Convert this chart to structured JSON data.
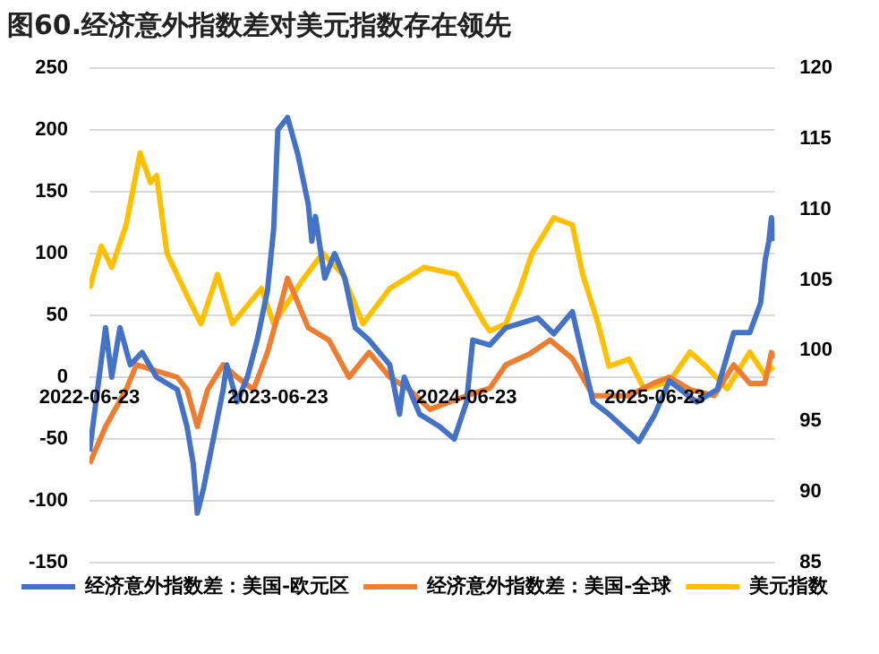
{
  "chart_data": {
    "type": "line",
    "title": "图60.经济意外指数差对美元指数存在领先",
    "xlim": [
      "2022-06-23",
      "2026-02-10"
    ],
    "xticks": [
      "2022-06-23",
      "2023-06-23",
      "2024-06-23",
      "2025-06-23"
    ],
    "ylim": [
      -150,
      250
    ],
    "yticks": [
      -150,
      -100,
      -50,
      0,
      50,
      100,
      150,
      200,
      250
    ],
    "y2lim": [
      85,
      120
    ],
    "y2ticks": [
      85,
      90,
      95,
      100,
      105,
      110,
      115,
      120
    ],
    "grid": "y",
    "legend": "bottom",
    "marker": "none",
    "line_style": "solid",
    "series": [
      {
        "name": "经济意外指数差：美国-欧元区",
        "color": "#4472c4",
        "x": [
          "2022-06-23",
          "2022-07-24",
          "2022-08-05",
          "2022-08-21",
          "2022-09-10",
          "2022-10-03",
          "2022-10-31",
          "2022-12-10",
          "2022-12-29",
          "2023-01-10",
          "2023-01-18",
          "2023-01-30",
          "2023-02-18",
          "2023-03-09",
          "2023-03-16",
          "2023-04-05",
          "2023-04-25",
          "2023-05-14",
          "2023-06-03",
          "2023-06-15",
          "2023-06-23",
          "2023-07-12",
          "2023-08-01",
          "2023-08-21",
          "2023-08-28",
          "2023-09-04",
          "2023-09-22",
          "2023-10-11",
          "2023-10-31",
          "2023-11-20",
          "2023-12-17",
          "2024-01-06",
          "2024-01-26",
          "2024-02-14",
          "2024-02-23",
          "2024-03-24",
          "2024-05-02",
          "2024-05-30",
          "2024-06-23",
          "2024-07-05",
          "2024-08-07",
          "2024-09-07",
          "2024-11-08",
          "2024-12-09",
          "2025-01-14",
          "2025-02-23",
          "2025-03-26",
          "2025-05-23",
          "2025-06-23",
          "2025-07-21",
          "2025-09-12",
          "2025-10-22",
          "2025-11-23",
          "2025-12-24",
          "2026-01-14",
          "2026-01-23",
          "2026-01-30",
          "2026-02-04",
          "2026-02-08"
        ],
        "values": [
          -60,
          40,
          0,
          40,
          10,
          20,
          0,
          -10,
          -40,
          -70,
          -110,
          -90,
          -50,
          -10,
          10,
          -20,
          0,
          30,
          70,
          120,
          200,
          210,
          180,
          140,
          110,
          130,
          80,
          100,
          80,
          40,
          30,
          20,
          10,
          -30,
          0,
          -30,
          -40,
          -50,
          -20,
          30,
          26,
          40,
          48,
          35,
          53,
          -20,
          -30,
          -52,
          -30,
          -3,
          -20,
          -10,
          36,
          36,
          60,
          95,
          110,
          129,
          110
        ]
      },
      {
        "name": "经济意外指数差：美国-全球",
        "color": "#ed7d31",
        "x": [
          "2022-06-23",
          "2022-07-24",
          "2022-09-02",
          "2022-09-22",
          "2022-10-31",
          "2022-12-10",
          "2022-12-29",
          "2023-01-18",
          "2023-02-07",
          "2023-03-09",
          "2023-04-05",
          "2023-05-07",
          "2023-06-03",
          "2023-06-23",
          "2023-07-12",
          "2023-08-01",
          "2023-08-21",
          "2023-09-30",
          "2023-11-08",
          "2023-12-17",
          "2024-01-26",
          "2024-03-04",
          "2024-04-13",
          "2024-06-23",
          "2024-08-07",
          "2024-09-07",
          "2024-10-24",
          "2024-12-02",
          "2025-01-14",
          "2025-02-23",
          "2025-03-26",
          "2025-05-04",
          "2025-06-20",
          "2025-07-21",
          "2025-08-30",
          "2025-10-16",
          "2025-11-23",
          "2025-12-24",
          "2026-01-22",
          "2026-02-04",
          "2026-02-08"
        ],
        "values": [
          -70,
          -40,
          -10,
          10,
          5,
          0,
          -10,
          -40,
          -10,
          10,
          0,
          -10,
          20,
          50,
          80,
          60,
          40,
          30,
          0,
          20,
          0,
          -10,
          -26,
          -15,
          -9,
          10,
          19,
          30,
          15,
          -15,
          -15,
          -15,
          -5,
          0,
          -10,
          -15,
          10,
          -5,
          -5,
          20,
          15
        ]
      },
      {
        "name": "美元指数",
        "color": "#ffc000",
        "axis": "y2",
        "x": [
          "2022-06-23",
          "2022-07-16",
          "2022-08-05",
          "2022-09-02",
          "2022-09-29",
          "2022-10-19",
          "2022-10-31",
          "2022-11-20",
          "2022-12-29",
          "2023-01-25",
          "2023-02-26",
          "2023-03-27",
          "2023-05-22",
          "2023-06-15",
          "2023-08-08",
          "2023-09-18",
          "2023-10-27",
          "2023-12-05",
          "2024-01-26",
          "2024-04-02",
          "2024-06-03",
          "2024-07-28",
          "2024-08-07",
          "2024-09-07",
          "2024-10-05",
          "2024-10-28",
          "2024-12-09",
          "2025-01-14",
          "2025-02-03",
          "2025-03-05",
          "2025-03-26",
          "2025-05-04",
          "2025-06-02",
          "2025-07-21",
          "2025-08-30",
          "2025-09-30",
          "2025-11-10",
          "2025-12-24",
          "2026-01-22",
          "2026-02-08"
        ],
        "values": [
          104.4,
          107.4,
          105.9,
          108.9,
          114.0,
          111.9,
          112.4,
          106.9,
          103.9,
          101.9,
          105.4,
          101.9,
          104.4,
          101.9,
          104.9,
          106.9,
          105.4,
          101.9,
          104.4,
          105.9,
          105.4,
          101.9,
          101.4,
          101.9,
          104.4,
          106.9,
          109.4,
          108.9,
          105.4,
          101.9,
          98.9,
          99.4,
          97.3,
          97.8,
          99.9,
          98.9,
          97.3,
          99.9,
          98.3,
          98.9
        ]
      }
    ]
  }
}
